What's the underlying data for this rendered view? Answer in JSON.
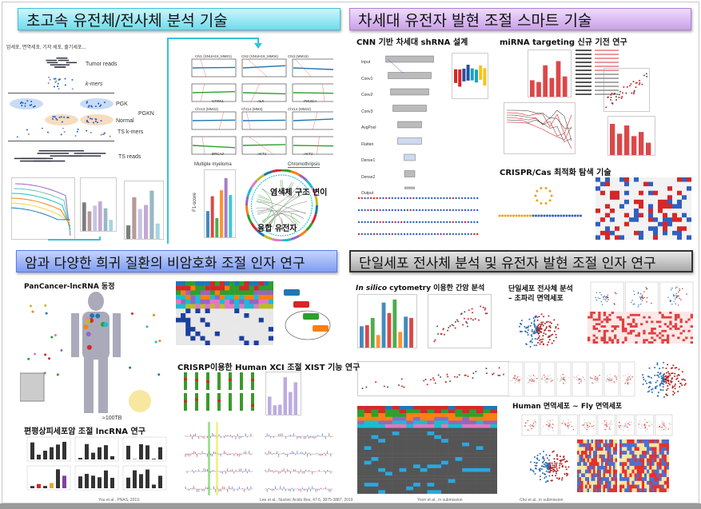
{
  "sections": {
    "genome": {
      "title": "초고속 유전체/전사체 분석 기술",
      "cells_caption": "암세포, 면역세포, 기저 세포, 줄기세포...",
      "labels": {
        "tumor_reads": "Tumor reads",
        "kmers": "k-mers",
        "pgk": "PGK",
        "pgkn": "PGKN",
        "normal": "Normal",
        "ts_kmers": "TS k-mers",
        "ts_reads": "TS reads"
      },
      "cnv_panels": [
        "CN1 (SNUH19_MM01)",
        "CN2 (SNUH19_MM04)",
        "CN3 (MM15)",
        "Chr13 (MM22)",
        "Chr14 (MM3)",
        "Chr14 (MM22)"
      ],
      "cnv_genes": [
        "NTRK1",
        "ALK",
        "PIK3CA",
        "BRCA2",
        "AKT1",
        "AKT1"
      ],
      "mm_title": "Multiple myeloma",
      "mm_ylabel": "F1-score",
      "chromothripsis": "Chromothripsis",
      "sv_label": "염색체 구조 변이",
      "fusion_label": "융합 유전자"
    },
    "smart": {
      "title": "차세대 유전자 발현 조절 스마트 기술",
      "cnn_title": "CNN 기반 차세대 shRNA 설계",
      "cnn_layers": [
        "Input",
        "Conv1",
        "Conv2",
        "Conv3",
        "AvgPool",
        "Flatten",
        "Dense1",
        "Dense2",
        "Output"
      ],
      "mirna_title": "miRNA targeting 신규 기전 연구",
      "crispr_title": "CRISPR/Cas 최적화 탐색 기술"
    },
    "noncoding": {
      "title": "암과 다양한 희귀 질환의 비암호화 조절 인자 연구",
      "pancancer_title": "PanCancer-lncRNA 동정",
      "data_size": "≈100TB",
      "scc_title": "편평상피세포암 조절 lncRNA 연구",
      "xist_title": "CRISRP이용한 Human XCI 조절 XIST 기능 연구",
      "ref_left": "You et al., PNAS, 2019.",
      "ref_right": "Lee et al., Nucleic Acids Res, 47:6, 3875-3887, 2019"
    },
    "singlecell": {
      "title": "단일세포 전사체 분석 및 유전자 발현 조절 인자 연구",
      "cytometry_title_italic": "In silico",
      "cytometry_title_rest": " cytometry 이용한 간암 분석",
      "fly_title_1": "단일세포 전사체 분석",
      "fly_title_2": "– 초파리 면역세포",
      "human_fly_title": "Human 면역세포 ~ Fly 면역세포",
      "ref_left": "Yoon et al., in submission",
      "ref_right": "Cho et al., in submission"
    }
  },
  "colors": {
    "cyan_header": "#6fdcec",
    "purple_header": "#c9a0ea",
    "blue_header": "#7f9df2",
    "gray_header": "#a9a9a9",
    "accent_teal": "#33c4d8"
  }
}
